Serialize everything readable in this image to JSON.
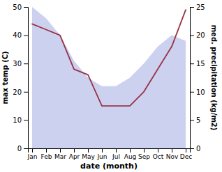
{
  "chart_data": {
    "type": "line",
    "categories": [
      "Jan",
      "Feb",
      "Mar",
      "Apr",
      "May",
      "Jun",
      "Jul",
      "Aug",
      "Sep",
      "Oct",
      "Nov",
      "Dec"
    ],
    "xlabel": "date (month)",
    "ylabel": "max temp (C)",
    "y2label": "med. precipitation (kg/m2)",
    "ylim": [
      0,
      50
    ],
    "yticks": [
      0,
      10,
      20,
      30,
      40,
      50
    ],
    "y2lim": [
      0,
      25
    ],
    "y2ticks": [
      0,
      5,
      10,
      15,
      20,
      25
    ],
    "grid": false,
    "series": [
      {
        "type": "area",
        "color": "#b0b8e8",
        "values": [
          50,
          46,
          40,
          31,
          25,
          22,
          22,
          25,
          30,
          36,
          40,
          38
        ]
      },
      {
        "type": "line",
        "color": "#993344",
        "axis": "y2",
        "values": [
          22,
          21,
          20,
          14,
          13,
          7.5,
          7.5,
          7.5,
          10,
          14,
          18,
          24.5
        ]
      }
    ]
  }
}
